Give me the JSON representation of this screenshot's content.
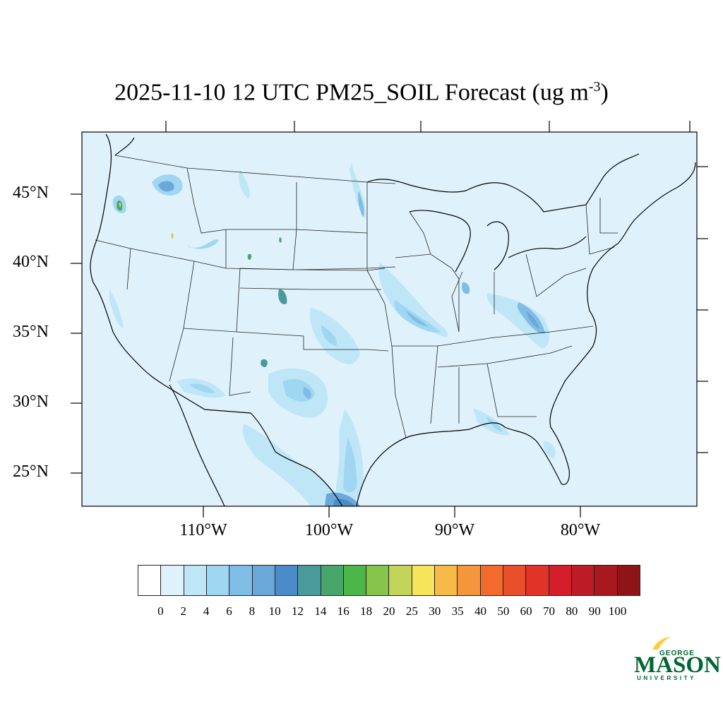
{
  "title": {
    "main": "2025-11-10 12 UTC PM25_SOIL Forecast (ug m",
    "superscript": "-3",
    "close": ")"
  },
  "latitude_labels": [
    "45°N",
    "40°N",
    "35°N",
    "30°N",
    "25°N"
  ],
  "longitude_labels": [
    "110°W",
    "100°W",
    "90°W",
    "80°W"
  ],
  "colorbar": {
    "labels": [
      "0",
      "2",
      "4",
      "6",
      "8",
      "10",
      "12",
      "14",
      "16",
      "18",
      "20",
      "25",
      "30",
      "35",
      "40",
      "50",
      "60",
      "70",
      "80",
      "90",
      "100"
    ],
    "colors": [
      "#ffffff",
      "#dff2fb",
      "#bfe6f7",
      "#9fd6f2",
      "#80bde6",
      "#6aa8da",
      "#4a8bc8",
      "#4a9a9c",
      "#48a66a",
      "#4cb648",
      "#86c44c",
      "#c3d45a",
      "#f6e45a",
      "#f7b948",
      "#f6963c",
      "#f26a2c",
      "#ea4f2c",
      "#e03428",
      "#d41f2a",
      "#bd1c26",
      "#a9181f",
      "#8f1417"
    ]
  },
  "logo": {
    "top": "GEORGE",
    "main": "MASON",
    "bottom": "UNIVERSITY",
    "colors": {
      "green": "#006633",
      "gold": "#ffcc33"
    }
  },
  "map_colors": {
    "background": "#dff2fb",
    "level_4": "#bfe6f7",
    "level_6": "#9fd6f2",
    "level_8": "#80bde6",
    "level_10": "#6aa8da",
    "level_14": "#4a9a9c",
    "level_18": "#4cb648",
    "level_25": "#c3d45a"
  }
}
